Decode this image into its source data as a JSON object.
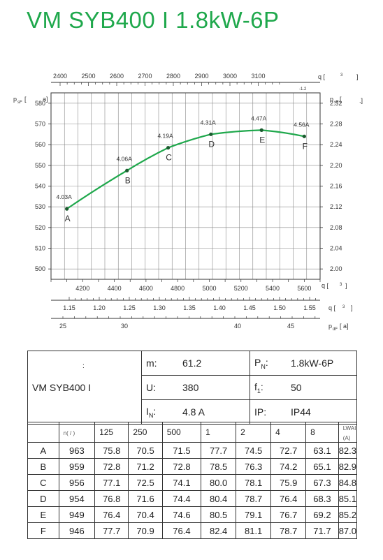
{
  "title": "VM SYB400 I 1.8kW-6P",
  "chart_data": {
    "type": "line",
    "x_top_ticks": [
      "2400",
      "2500",
      "2600",
      "2700",
      "2800",
      "2900",
      "3000",
      "3100"
    ],
    "x_top_label": "q",
    "x_top_unit_frag": "3",
    "x_top_sub": "-1.2",
    "x_axis2_ticks": [
      "4200",
      "4400",
      "4600",
      "4800",
      "5000",
      "5200",
      "5400",
      "5600"
    ],
    "x_axis2_label": "q",
    "x_axis2_unit_frag": "3",
    "x_axis3_ticks": [
      "1.15",
      "1.20",
      "1.25",
      "1.30",
      "1.35",
      "1.40",
      "1.45",
      "1.50",
      "1.55"
    ],
    "x_axis3_label": "q",
    "x_axis3_unit_frag": "3",
    "x_axis4_ticks": [
      "25",
      "30",
      "40",
      "45"
    ],
    "x_axis4_label": "p",
    "x_axis4_sub": "dF",
    "x_axis4_unit": "a",
    "y_left_label": "p",
    "y_left_sub": "sF",
    "y_left_unit": "a",
    "y_left_ticks": [
      "500",
      "510",
      "520",
      "530",
      "540",
      "550",
      "560",
      "570",
      "580"
    ],
    "y_right_label": "p",
    "y_right_sub": "sF",
    "y_right_ticks": [
      "2.00",
      "2.04",
      "2.08",
      "2.12",
      "2.16",
      "2.20",
      "2.24",
      "2.28",
      "2.32"
    ],
    "xlim": [
      4000,
      5700
    ],
    "ylim": [
      495,
      585
    ],
    "series": [
      {
        "points": [
          {
            "x": 4100,
            "y": 529,
            "label": "A",
            "current": "4.03A"
          },
          {
            "x": 4480,
            "y": 547.5,
            "label": "B",
            "current": "4.06A"
          },
          {
            "x": 4740,
            "y": 558.5,
            "label": "C",
            "current": "4.19A"
          },
          {
            "x": 5010,
            "y": 565,
            "label": "D",
            "current": "4.31A"
          },
          {
            "x": 5330,
            "y": 567,
            "label": "E",
            "current": "4.47A"
          },
          {
            "x": 5600,
            "y": 564,
            "label": "F",
            "current": "4.56A"
          }
        ],
        "color": "#1fa84c"
      }
    ],
    "grid": true
  },
  "info": {
    "model": "VM SYB400 I",
    "model_mark": ":",
    "m_label": "m:",
    "m_value": "61.2",
    "pn_label": "P",
    "pn_sub": "N",
    "pn_colon": ":",
    "pn_value": "1.8kW-6P",
    "u_label": "U:",
    "u_value": "380",
    "f_label": "f",
    "f_sub": "1",
    "f_colon": ":",
    "f_value": "50",
    "in_label": "I",
    "in_sub": "N",
    "in_colon": ":",
    "in_value": "4.8  A",
    "ip_label": "IP:",
    "ip_value": "IP44"
  },
  "table": {
    "header_first": "n(  /  )",
    "header": [
      "125",
      "250",
      "500",
      "1",
      "2",
      "4",
      "8"
    ],
    "header_last_label": "L",
    "header_last_sub": "WAI",
    "header_last_unit": "(A)",
    "rows": [
      {
        "point": "A",
        "n": "963",
        "v": [
          "75.8",
          "70.5",
          "71.5",
          "77.7",
          "74.5",
          "72.7",
          "63.1"
        ],
        "lw": "82.3"
      },
      {
        "point": "B",
        "n": "959",
        "v": [
          "72.8",
          "71.2",
          "72.8",
          "78.5",
          "76.3",
          "74.2",
          "65.1"
        ],
        "lw": "82.9"
      },
      {
        "point": "C",
        "n": "956",
        "v": [
          "77.1",
          "72.5",
          "74.1",
          "80.0",
          "78.1",
          "75.9",
          "67.3"
        ],
        "lw": "84.8"
      },
      {
        "point": "D",
        "n": "954",
        "v": [
          "76.8",
          "71.6",
          "74.4",
          "80.4",
          "78.7",
          "76.4",
          "68.3"
        ],
        "lw": "85.1"
      },
      {
        "point": "E",
        "n": "949",
        "v": [
          "76.4",
          "70.4",
          "74.6",
          "80.5",
          "79.1",
          "76.7",
          "69.2"
        ],
        "lw": "85.2"
      },
      {
        "point": "F",
        "n": "946",
        "v": [
          "77.7",
          "70.9",
          "76.4",
          "82.4",
          "81.1",
          "78.7",
          "71.7"
        ],
        "lw": "87.0"
      }
    ]
  }
}
